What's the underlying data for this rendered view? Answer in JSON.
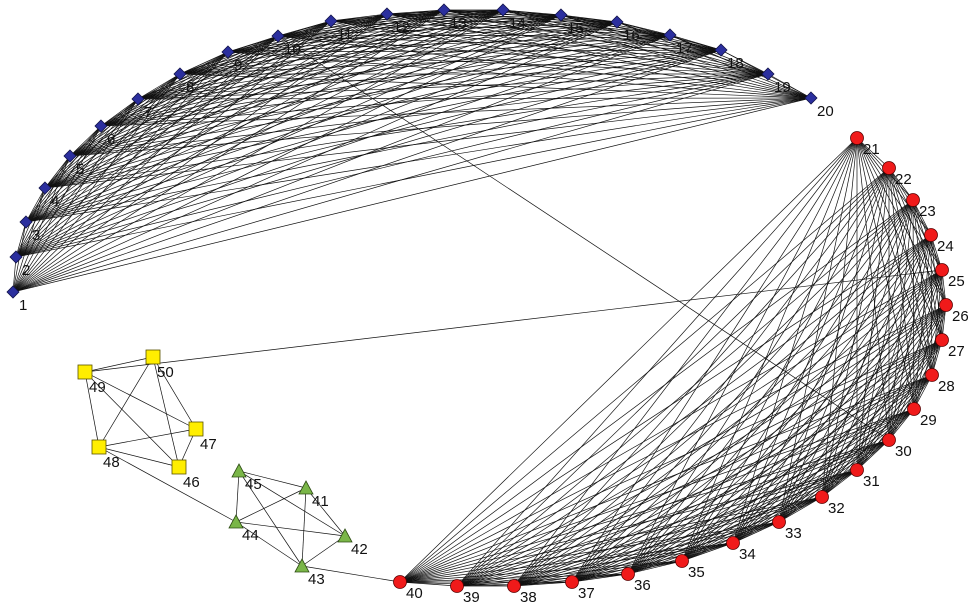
{
  "groups": [
    {
      "id": "A",
      "shape": "diamond",
      "fill": "#2b2f9e",
      "stroke": "#10124a"
    },
    {
      "id": "B",
      "shape": "circle",
      "fill": "#f01a1a",
      "stroke": "#5a0000"
    },
    {
      "id": "C",
      "shape": "triangle",
      "fill": "#7ab648",
      "stroke": "#2e4d14"
    },
    {
      "id": "D",
      "shape": "square",
      "fill": "#ffee00",
      "stroke": "#5a5200"
    }
  ],
  "nodes": [
    {
      "id": 1,
      "label": "1",
      "group": "A"
    },
    {
      "id": 2,
      "label": "2",
      "group": "A"
    },
    {
      "id": 3,
      "label": "3",
      "group": "A"
    },
    {
      "id": 4,
      "label": "4",
      "group": "A"
    },
    {
      "id": 5,
      "label": "5",
      "group": "A"
    },
    {
      "id": 6,
      "label": "6",
      "group": "A"
    },
    {
      "id": 7,
      "label": "7",
      "group": "A"
    },
    {
      "id": 8,
      "label": "8",
      "group": "A"
    },
    {
      "id": 9,
      "label": "9",
      "group": "A"
    },
    {
      "id": 10,
      "label": "10",
      "group": "A"
    },
    {
      "id": 11,
      "label": "11",
      "group": "A"
    },
    {
      "id": 12,
      "label": "12",
      "group": "A"
    },
    {
      "id": 13,
      "label": "13",
      "group": "A"
    },
    {
      "id": 14,
      "label": "14",
      "group": "A"
    },
    {
      "id": 15,
      "label": "15",
      "group": "A"
    },
    {
      "id": 16,
      "label": "16",
      "group": "A"
    },
    {
      "id": 17,
      "label": "17",
      "group": "A"
    },
    {
      "id": 18,
      "label": "18",
      "group": "A"
    },
    {
      "id": 19,
      "label": "19",
      "group": "A"
    },
    {
      "id": 20,
      "label": "20",
      "group": "A"
    },
    {
      "id": 21,
      "label": "21",
      "group": "B"
    },
    {
      "id": 22,
      "label": "22",
      "group": "B"
    },
    {
      "id": 23,
      "label": "23",
      "group": "B"
    },
    {
      "id": 24,
      "label": "24",
      "group": "B"
    },
    {
      "id": 25,
      "label": "25",
      "group": "B"
    },
    {
      "id": 26,
      "label": "26",
      "group": "B"
    },
    {
      "id": 27,
      "label": "27",
      "group": "B"
    },
    {
      "id": 28,
      "label": "28",
      "group": "B"
    },
    {
      "id": 29,
      "label": "29",
      "group": "B"
    },
    {
      "id": 30,
      "label": "30",
      "group": "B"
    },
    {
      "id": 31,
      "label": "31",
      "group": "B"
    },
    {
      "id": 32,
      "label": "32",
      "group": "B"
    },
    {
      "id": 33,
      "label": "33",
      "group": "B"
    },
    {
      "id": 34,
      "label": "34",
      "group": "B"
    },
    {
      "id": 35,
      "label": "35",
      "group": "B"
    },
    {
      "id": 36,
      "label": "36",
      "group": "B"
    },
    {
      "id": 37,
      "label": "37",
      "group": "B"
    },
    {
      "id": 38,
      "label": "38",
      "group": "B"
    },
    {
      "id": 39,
      "label": "39",
      "group": "B"
    },
    {
      "id": 40,
      "label": "40",
      "group": "B"
    },
    {
      "id": 41,
      "label": "41",
      "group": "C"
    },
    {
      "id": 42,
      "label": "42",
      "group": "C"
    },
    {
      "id": 43,
      "label": "43",
      "group": "C"
    },
    {
      "id": 44,
      "label": "44",
      "group": "C"
    },
    {
      "id": 45,
      "label": "45",
      "group": "C"
    },
    {
      "id": 46,
      "label": "46",
      "group": "D"
    },
    {
      "id": 47,
      "label": "47",
      "group": "D"
    },
    {
      "id": 48,
      "label": "48",
      "group": "D"
    },
    {
      "id": 49,
      "label": "49",
      "group": "D"
    },
    {
      "id": 50,
      "label": "50",
      "group": "D"
    }
  ],
  "cliques": [
    {
      "group": "A",
      "nodes": [
        1,
        2,
        3,
        4,
        5,
        6,
        7,
        8,
        9,
        10,
        11,
        12,
        13,
        14,
        15,
        16,
        17,
        18,
        19,
        20
      ]
    },
    {
      "group": "B",
      "nodes": [
        21,
        22,
        23,
        24,
        25,
        26,
        27,
        28,
        29,
        30,
        31,
        32,
        33,
        34,
        35,
        36,
        37,
        38,
        39,
        40
      ]
    },
    {
      "group": "C",
      "nodes": [
        41,
        42,
        43,
        44,
        45
      ]
    },
    {
      "group": "D",
      "nodes": [
        46,
        47,
        48,
        49,
        50
      ]
    }
  ],
  "bridges": [
    [
      10,
      30
    ],
    [
      49,
      25
    ],
    [
      48,
      44
    ],
    [
      43,
      40
    ]
  ]
}
